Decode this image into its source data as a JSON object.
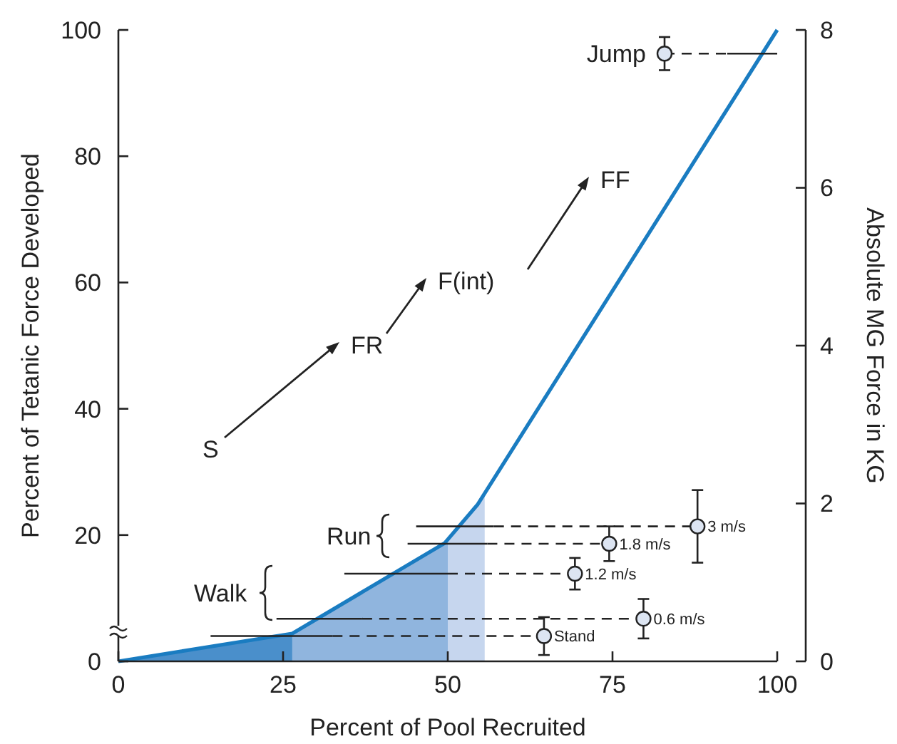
{
  "chart_data": {
    "type": "line",
    "xlabel": "Percent of Pool Recruited",
    "ylabel": "Percent of Tetanic Force Developed",
    "y2label": "Absolute MG Force in KG",
    "xlim": [
      0,
      100
    ],
    "xticks": [
      0,
      25,
      50,
      75,
      100
    ],
    "ylim": [
      0,
      100
    ],
    "yticks": [
      0,
      20,
      40,
      60,
      80,
      100
    ],
    "y2lim": [
      0,
      8
    ],
    "y2ticks": [
      0,
      2,
      4,
      6,
      8
    ],
    "grid": false,
    "series": [
      {
        "type": "area",
        "color": "#4a8fcb",
        "x": [
          0,
          26.4
        ],
        "values": [
          0,
          4.4
        ]
      },
      {
        "type": "area",
        "color": "#90b5de",
        "x": [
          26.4,
          49.5,
          50
        ],
        "values": [
          4.4,
          18.7,
          19.3
        ]
      },
      {
        "type": "area",
        "color": "#c6d6ee",
        "x": [
          50,
          54.5,
          55.6
        ],
        "values": [
          19.3,
          24.8,
          26.6
        ]
      },
      {
        "color": "#1a7cc1",
        "x": [
          0,
          26.4,
          49.5,
          54.5,
          100
        ],
        "values": [
          0,
          4.4,
          18.7,
          24.8,
          100
        ],
        "line_style": "solid"
      },
      {
        "axis": "y2",
        "color": "#222222",
        "x": [
          14,
          32.5
        ],
        "values": [
          0.32,
          0.32
        ],
        "line_style": "solid"
      },
      {
        "axis": "y2",
        "color": "#222222",
        "x": [
          32.5,
          64.6
        ],
        "values": [
          0.32,
          0.32
        ],
        "line_style": "dashed"
      },
      {
        "axis": "y2",
        "color": "#222222",
        "x": [
          24,
          37
        ],
        "values": [
          0.54,
          0.54
        ],
        "line_style": "solid"
      },
      {
        "axis": "y2",
        "color": "#222222",
        "x": [
          37,
          79.7
        ],
        "values": [
          0.54,
          0.54
        ],
        "line_style": "dashed"
      },
      {
        "axis": "y2",
        "color": "#222222",
        "x": [
          34.3,
          50
        ],
        "values": [
          1.11,
          1.11
        ],
        "line_style": "solid"
      },
      {
        "axis": "y2",
        "color": "#222222",
        "x": [
          50,
          69.3
        ],
        "values": [
          1.11,
          1.11
        ],
        "line_style": "dashed"
      },
      {
        "axis": "y2",
        "color": "#222222",
        "x": [
          43.9,
          56
        ],
        "values": [
          1.49,
          1.49
        ],
        "line_style": "solid"
      },
      {
        "axis": "y2",
        "color": "#222222",
        "x": [
          56,
          74.5
        ],
        "values": [
          1.49,
          1.49
        ],
        "line_style": "dashed"
      },
      {
        "axis": "y2",
        "color": "#222222",
        "x": [
          45.2,
          57
        ],
        "values": [
          1.71,
          1.71
        ],
        "line_style": "solid"
      },
      {
        "axis": "y2",
        "color": "#222222",
        "x": [
          57,
          87.9
        ],
        "values": [
          1.71,
          1.71
        ],
        "line_style": "dashed"
      },
      {
        "axis": "y2",
        "color": "#222222",
        "x": [
          92.4,
          100
        ],
        "values": [
          7.7,
          7.7
        ],
        "line_style": "solid"
      },
      {
        "axis": "y2",
        "color": "#222222",
        "x": [
          82.9,
          92.4
        ],
        "values": [
          7.7,
          7.7
        ],
        "line_style": "dashed"
      },
      {
        "type": "scatter",
        "axis": "y2",
        "color": "#dde5f2",
        "marker": "circle",
        "x": [
          64.6,
          79.7,
          69.3,
          74.5,
          87.9,
          82.9
        ],
        "values": [
          0.32,
          0.54,
          1.11,
          1.49,
          1.71,
          7.7
        ],
        "errors": [
          0.24,
          0.25,
          0.2,
          0.22,
          0.46,
          0.21
        ]
      }
    ],
    "annotations": [
      "S",
      "FR",
      "F(int)",
      "FF",
      "Walk",
      "Run",
      "Stand",
      "0.6 m/s",
      "1.2 m/s",
      "1.8 m/s",
      "3 m/s",
      "Jump"
    ]
  }
}
